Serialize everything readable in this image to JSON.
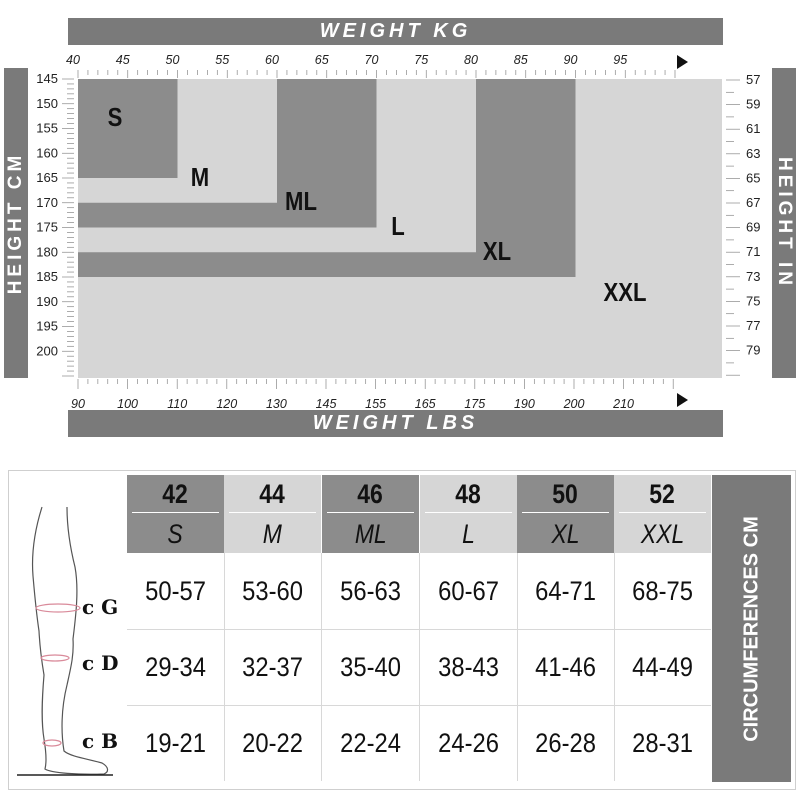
{
  "chart_data": {
    "type": "table",
    "title": "",
    "top_axis_label": "WEIGHT KG",
    "bottom_axis_label": "WEIGHT LBS",
    "left_axis_label": "HEIGHT CM",
    "right_axis_label": "HEIGHT IN",
    "kg_ticks": [
      "40",
      "45",
      "50",
      "55",
      "60",
      "65",
      "70",
      "75",
      "80",
      "85",
      "90",
      "95"
    ],
    "lbs_ticks": [
      "90",
      "100",
      "110",
      "120",
      "130",
      "145",
      "155",
      "165",
      "175",
      "190",
      "200",
      "210"
    ],
    "cm_ticks": [
      "145",
      "150",
      "155",
      "160",
      "165",
      "170",
      "175",
      "180",
      "185",
      "190",
      "195",
      "200"
    ],
    "in_ticks": [
      "57",
      "59",
      "61",
      "63",
      "65",
      "67",
      "69",
      "71",
      "73",
      "75",
      "77",
      "79"
    ],
    "size_regions": [
      {
        "size": "S",
        "kg_max": 50,
        "cm_max": 165,
        "shade": "dark"
      },
      {
        "size": "M",
        "kg_max": 60,
        "cm_max": 170,
        "shade": "light"
      },
      {
        "size": "ML",
        "kg_max": 70,
        "cm_max": 175,
        "shade": "dark"
      },
      {
        "size": "L",
        "kg_max": 80,
        "cm_max": 180,
        "shade": "light"
      },
      {
        "size": "XL",
        "kg_max": 90,
        "cm_max": 185,
        "shade": "dark"
      },
      {
        "size": "XXL",
        "kg_max": 100,
        "cm_max": 205,
        "shade": "light"
      }
    ],
    "region_label_text": [
      "S",
      "M",
      "ML",
      "L",
      "XL",
      "XXL"
    ],
    "table": {
      "columns": [
        {
          "number": "42",
          "code": "S"
        },
        {
          "number": "44",
          "code": "M"
        },
        {
          "number": "46",
          "code": "ML"
        },
        {
          "number": "48",
          "code": "L"
        },
        {
          "number": "50",
          "code": "XL"
        },
        {
          "number": "52",
          "code": "XXL"
        }
      ],
      "rows": [
        {
          "label": "c G",
          "values": [
            "50-57",
            "53-60",
            "56-63",
            "60-67",
            "64-71",
            "68-75"
          ]
        },
        {
          "label": "c D",
          "values": [
            "29-34",
            "32-37",
            "35-40",
            "38-43",
            "41-46",
            "44-49"
          ]
        },
        {
          "label": "c B",
          "values": [
            "19-21",
            "20-22",
            "22-24",
            "24-26",
            "26-28",
            "28-31"
          ]
        }
      ],
      "side_label": "CIRCUMFERENCES CM"
    },
    "colors": {
      "dark": "#8c8c8c",
      "light": "#d6d6d6",
      "bar": "#7a7a7a",
      "background": "#ffffff"
    }
  }
}
